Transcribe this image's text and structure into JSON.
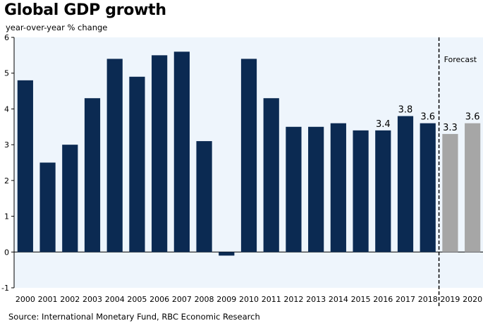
{
  "title": "Global GDP growth",
  "subtitle": "year-over-year % change",
  "source": "Source: International Monetary Fund, RBC Economic Research",
  "forecast_label": "Forecast",
  "colors": {
    "actual": "#0b2a52",
    "forecast": "#a6a6a6",
    "plot_bg": "#eef5fc",
    "axis": "#000000"
  },
  "chart_data": {
    "type": "bar",
    "title": "Global GDP growth",
    "subtitle": "year-over-year % change",
    "categories": [
      "2000",
      "2001",
      "2002",
      "2003",
      "2004",
      "2005",
      "2006",
      "2007",
      "2008",
      "2009",
      "2010",
      "2011",
      "2012",
      "2013",
      "2014",
      "2015",
      "2016",
      "2017",
      "2018",
      "2019",
      "2020"
    ],
    "values": [
      4.8,
      2.5,
      3.0,
      4.3,
      5.4,
      4.9,
      5.5,
      5.6,
      3.1,
      -0.1,
      5.4,
      4.3,
      3.5,
      3.5,
      3.6,
      3.4,
      3.4,
      3.8,
      3.6,
      3.3,
      3.6
    ],
    "forecast": [
      false,
      false,
      false,
      false,
      false,
      false,
      false,
      false,
      false,
      false,
      false,
      false,
      false,
      false,
      false,
      false,
      false,
      false,
      false,
      true,
      true
    ],
    "data_labels": {
      "2016": "3.4",
      "2017": "3.8",
      "2018": "3.6",
      "2019": "3.3",
      "2020": "3.6"
    },
    "yticks": [
      -1,
      0,
      1,
      2,
      3,
      4,
      5,
      6
    ],
    "ylim": [
      -1,
      6
    ],
    "xlabel": "",
    "ylabel": "",
    "grid": false,
    "annotation": "Forecast"
  }
}
